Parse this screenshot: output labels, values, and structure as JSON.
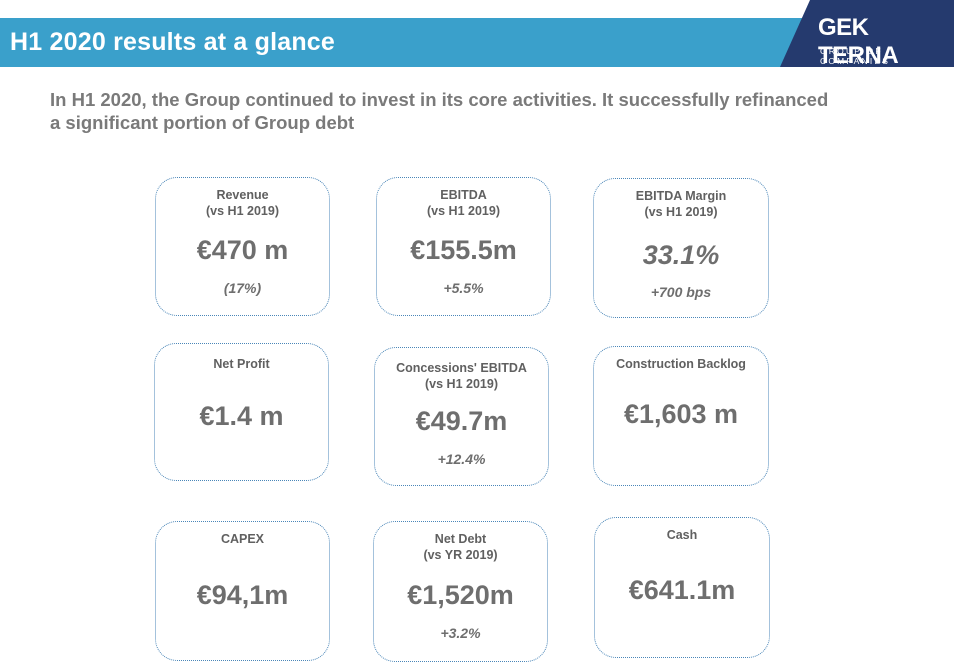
{
  "header": {
    "title": "H1 2020 results at a glance"
  },
  "logo": {
    "name": "GEK TERNA",
    "tagline": "GROUP OF COMPANIES"
  },
  "intro": {
    "line1": "In H1 2020, the Group continued to invest in its core activities. It successfully refinanced",
    "line2": "a significant portion of Group debt"
  },
  "cards": [
    {
      "label1": "Revenue",
      "label2": "(vs H1 2019)",
      "value": "€470 m",
      "change": "(17%)"
    },
    {
      "label1": "EBITDA",
      "label2": "(vs H1 2019)",
      "value": "€155.5m",
      "change": "+5.5%"
    },
    {
      "label1": "EBITDA Margin",
      "label2": "(vs H1 2019)",
      "value": "33.1%",
      "change": "+700 bps"
    },
    {
      "label1": "Net Profit",
      "label2": "",
      "value": "€1.4 m",
      "change": ""
    },
    {
      "label1": "Concessions' EBITDA",
      "label2": "(vs H1 2019)",
      "value": "€49.7m",
      "change": "+12.4%"
    },
    {
      "label1": "Construction Backlog",
      "label2": "",
      "value": "€1,603 m",
      "change": ""
    },
    {
      "label1": "CAPEX",
      "label2": "",
      "value": "€94,1m",
      "change": ""
    },
    {
      "label1": "Net Debt",
      "label2": "(vs YR 2019)",
      "value": "€1,520m",
      "change": "+3.2%"
    },
    {
      "label1": "Cash",
      "label2": "",
      "value": "€641.1m",
      "change": ""
    }
  ]
}
